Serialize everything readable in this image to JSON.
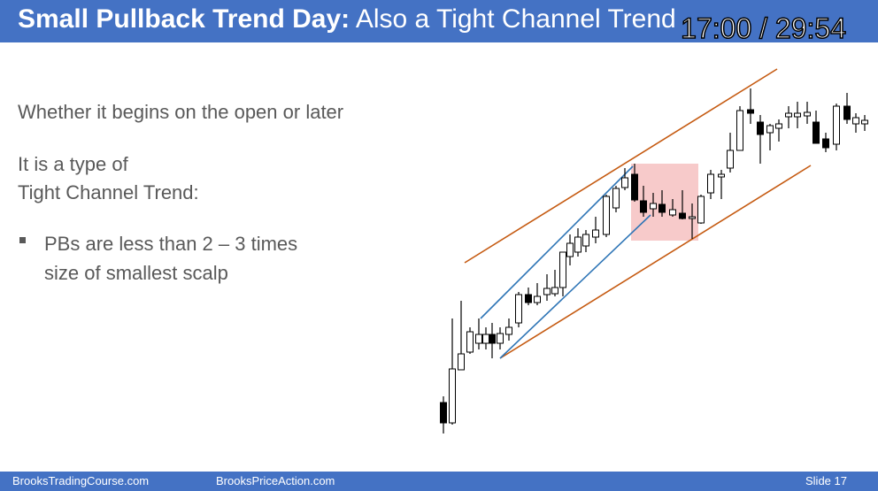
{
  "header": {
    "title_bold": "Small Pullback Trend Day:",
    "title_rest": "Also a Tight Channel Trend"
  },
  "video_time": "17:00 / 29:54",
  "body": {
    "line1": "Whether it begins on the open or later",
    "line2": [
      "It is a type of",
      "Tight Channel Trend:"
    ],
    "bullet": [
      "PBs are less than 2 – 3 times",
      "size of smallest scalp"
    ]
  },
  "footer": {
    "left": "BrooksTradingCourse.com",
    "center": "BrooksPriceAction.com",
    "slide": "Slide 17"
  }
}
